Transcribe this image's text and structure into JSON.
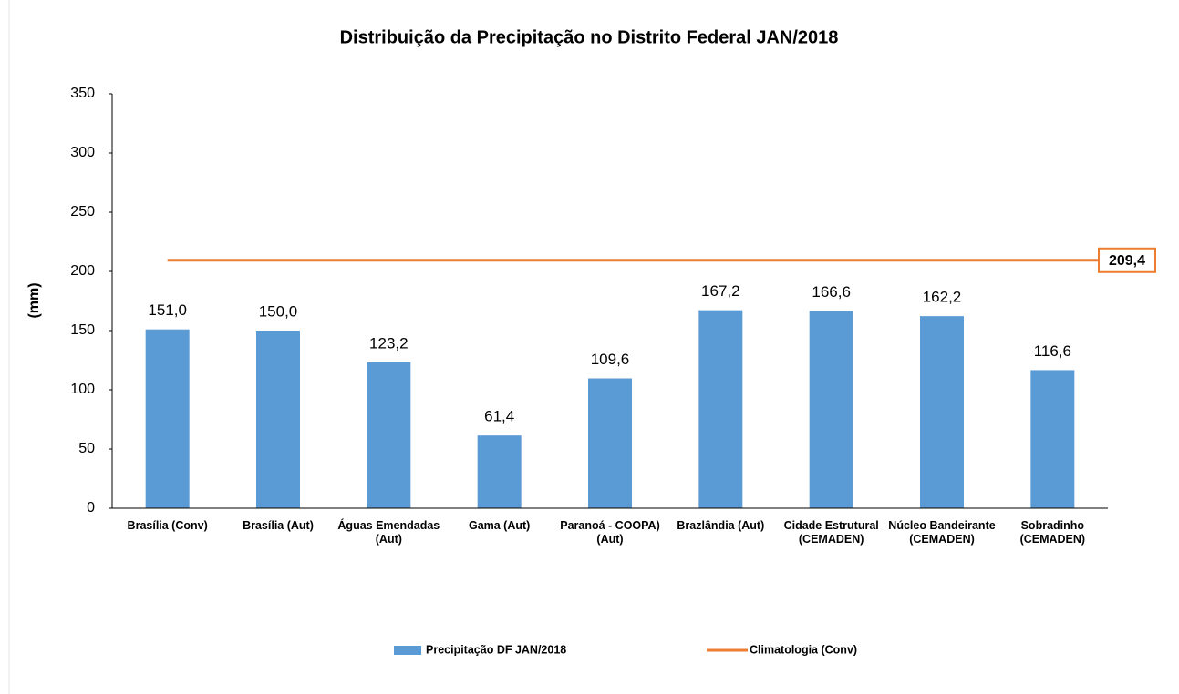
{
  "chart_data": {
    "type": "bar",
    "title": "Distribuição da Precipitação no Distrito Federal JAN/2018",
    "y_label": "(mm)",
    "categories": [
      "Brasília (Conv)",
      "Brasília (Aut)",
      "Águas Emendadas (Aut)",
      "Gama (Aut)",
      "Paranoá - COOPA) (Aut)",
      "Brazlândia (Aut)",
      "Cidade Estrutural (CEMADEN)",
      "Núcleo Bandeirante (CEMADEN)",
      "Sobradinho (CEMADEN)"
    ],
    "series": [
      {
        "name": "Precipitação DF JAN/2018",
        "color": "#5b9bd5",
        "values": [
          151.0,
          150.0,
          123.2,
          61.4,
          109.6,
          167.2,
          166.6,
          162.2,
          116.6
        ],
        "value_labels": [
          "151,0",
          "150,0",
          "123,2",
          "61,4",
          "109,6",
          "167,2",
          "166,6",
          "162,2",
          "116,6"
        ]
      }
    ],
    "reference_line": {
      "name": "Climatologia (Conv)",
      "color": "#ed7d31",
      "value": 209.4,
      "value_label": "209,4"
    },
    "ylim": [
      0,
      350
    ],
    "yticks": [
      0,
      50,
      100,
      150,
      200,
      250,
      300,
      350
    ],
    "legend": "bottom"
  }
}
